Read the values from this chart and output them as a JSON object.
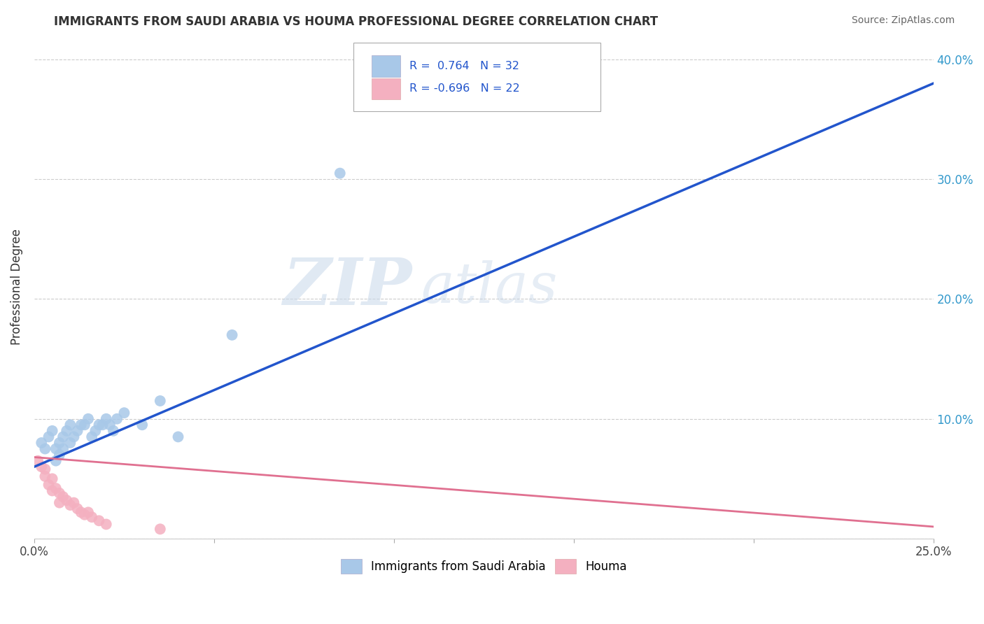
{
  "title": "IMMIGRANTS FROM SAUDI ARABIA VS HOUMA PROFESSIONAL DEGREE CORRELATION CHART",
  "source": "Source: ZipAtlas.com",
  "ylabel": "Professional Degree",
  "xlim": [
    0.0,
    0.25
  ],
  "ylim": [
    0.0,
    0.42
  ],
  "ytick_right": [
    0.1,
    0.2,
    0.3,
    0.4
  ],
  "ytick_right_labels": [
    "10.0%",
    "20.0%",
    "30.0%",
    "40.0%"
  ],
  "blue_R": 0.764,
  "blue_N": 32,
  "pink_R": -0.696,
  "pink_N": 22,
  "blue_color": "#a8c8e8",
  "pink_color": "#f4b0c0",
  "blue_line_color": "#2255cc",
  "pink_line_color": "#e07090",
  "legend_label_blue": "Immigrants from Saudi Arabia",
  "legend_label_pink": "Houma",
  "watermark_zip": "ZIP",
  "watermark_atlas": "atlas",
  "background_color": "#ffffff",
  "grid_color": "#cccccc",
  "blue_line_x0": 0.0,
  "blue_line_y0": 0.06,
  "blue_line_x1": 0.25,
  "blue_line_y1": 0.38,
  "pink_line_x0": 0.0,
  "pink_line_y0": 0.068,
  "pink_line_x1": 0.25,
  "pink_line_y1": 0.01,
  "blue_x": [
    0.002,
    0.003,
    0.004,
    0.005,
    0.006,
    0.006,
    0.007,
    0.007,
    0.008,
    0.008,
    0.009,
    0.01,
    0.01,
    0.011,
    0.012,
    0.013,
    0.014,
    0.015,
    0.016,
    0.017,
    0.018,
    0.019,
    0.02,
    0.021,
    0.022,
    0.023,
    0.025,
    0.03,
    0.035,
    0.04,
    0.055,
    0.085
  ],
  "blue_y": [
    0.08,
    0.075,
    0.085,
    0.09,
    0.065,
    0.075,
    0.07,
    0.08,
    0.085,
    0.075,
    0.09,
    0.095,
    0.08,
    0.085,
    0.09,
    0.095,
    0.095,
    0.1,
    0.085,
    0.09,
    0.095,
    0.095,
    0.1,
    0.095,
    0.09,
    0.1,
    0.105,
    0.095,
    0.115,
    0.085,
    0.17,
    0.305
  ],
  "pink_x": [
    0.001,
    0.002,
    0.003,
    0.003,
    0.004,
    0.005,
    0.005,
    0.006,
    0.007,
    0.007,
    0.008,
    0.009,
    0.01,
    0.011,
    0.012,
    0.013,
    0.014,
    0.015,
    0.016,
    0.018,
    0.02,
    0.035
  ],
  "pink_y": [
    0.065,
    0.06,
    0.058,
    0.052,
    0.045,
    0.05,
    0.04,
    0.042,
    0.038,
    0.03,
    0.035,
    0.032,
    0.028,
    0.03,
    0.025,
    0.022,
    0.02,
    0.022,
    0.018,
    0.015,
    0.012,
    0.008
  ]
}
